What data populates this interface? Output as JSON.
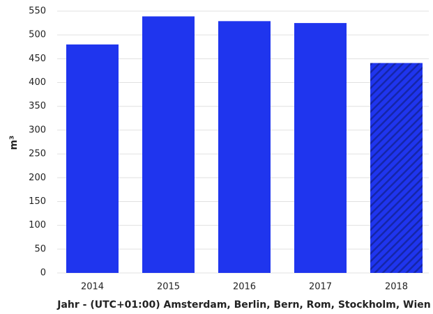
{
  "chart_data": {
    "type": "bar",
    "categories": [
      "2014",
      "2015",
      "2016",
      "2017",
      "2018"
    ],
    "values": [
      480,
      539,
      529,
      525,
      441
    ],
    "patterns": [
      "solid",
      "solid",
      "solid",
      "solid",
      "hatched"
    ],
    "color": "#1f35ee",
    "ylim": [
      0,
      550
    ],
    "yticks": [
      0,
      50,
      100,
      150,
      200,
      250,
      300,
      350,
      400,
      450,
      500,
      550
    ],
    "grid": true,
    "y_label": "m³",
    "x_label": "Jahr - (UTC+01:00) Amsterdam, Berlin, Bern, Rom, Stockholm, Wien"
  }
}
